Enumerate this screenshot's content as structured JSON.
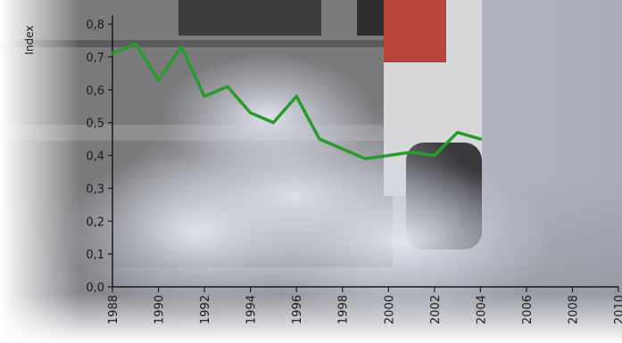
{
  "chart_data": {
    "type": "line",
    "ylabel": "Index",
    "xlabel": "",
    "title": "",
    "xlim": [
      1988,
      2010
    ],
    "ylim": [
      0,
      0.8
    ],
    "x_ticks": [
      "1988",
      "1990",
      "1992",
      "1994",
      "1996",
      "1998",
      "2000",
      "2002",
      "2004",
      "2006",
      "2008",
      "2010"
    ],
    "y_ticks": [
      "0,0",
      "0,1",
      "0,2",
      "0,3",
      "0,4",
      "0,5",
      "0,6",
      "0,7",
      "0,8"
    ],
    "grid": false,
    "legend": "none",
    "background_image": "car-exhaust-smoke-photo",
    "colors": {
      "line": "#2a9a2e",
      "axis": "#1a1a1a"
    },
    "series": [
      {
        "x": [
          1988,
          1989,
          1990,
          1991,
          1992,
          1993,
          1994,
          1995,
          1996,
          1997,
          1998,
          1999,
          2000,
          2001,
          2002,
          2003,
          2004
        ],
        "values": [
          0.71,
          0.74,
          0.63,
          0.73,
          0.58,
          0.61,
          0.53,
          0.5,
          0.58,
          0.45,
          0.42,
          0.39,
          0.4,
          0.41,
          0.4,
          0.47,
          0.45
        ]
      }
    ]
  }
}
